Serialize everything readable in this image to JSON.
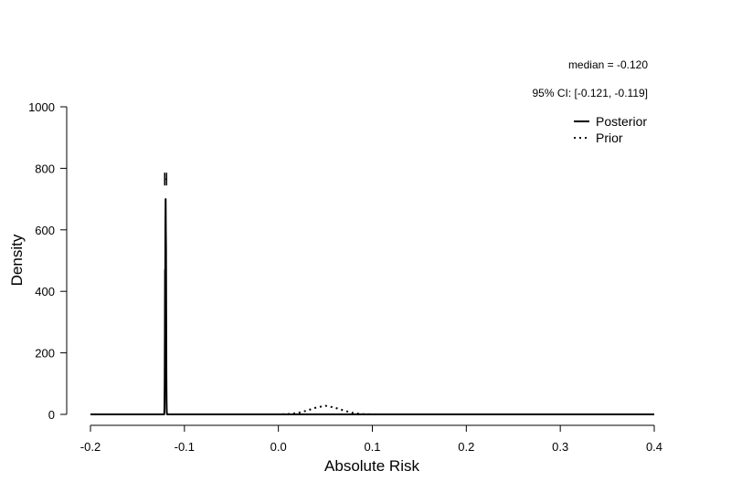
{
  "chart_data": {
    "type": "line",
    "xlabel": "Absolute Risk",
    "ylabel": "Density",
    "xlim": [
      -0.2,
      0.4
    ],
    "ylim": [
      0,
      1000
    ],
    "x_ticks": [
      -0.2,
      -0.1,
      0.0,
      0.1,
      0.2,
      0.3,
      0.4
    ],
    "x_tick_labels": [
      "-0.2",
      "-0.1",
      "0.0",
      "0.1",
      "0.2",
      "0.3",
      "0.4"
    ],
    "y_ticks": [
      0,
      200,
      400,
      600,
      800,
      1000
    ],
    "y_tick_labels": [
      "0",
      "200",
      "400",
      "600",
      "800",
      "1000"
    ],
    "annotations": {
      "median": "median = -0.120",
      "ci": "95% CI: [-0.121, -0.119]"
    },
    "ci_interval": [
      -0.121,
      -0.119
    ],
    "ci_bar_height": 765,
    "legend_position": "top-right",
    "series": [
      {
        "name": "Posterior",
        "style": "solid",
        "x": [
          -0.2,
          -0.1215,
          -0.1212,
          -0.121,
          -0.1208,
          -0.1206,
          -0.1204,
          -0.1202,
          -0.12,
          -0.1198,
          -0.1196,
          -0.1194,
          -0.1192,
          -0.119,
          -0.1188,
          -0.1186,
          -0.1184,
          -0.118,
          0.4
        ],
        "y": [
          0,
          0,
          20,
          100,
          250,
          470,
          420,
          620,
          700,
          600,
          540,
          330,
          120,
          40,
          10,
          2,
          0,
          0,
          0
        ]
      },
      {
        "name": "Prior",
        "style": "dotted",
        "x": [
          -0.2,
          0.0,
          0.01,
          0.02,
          0.03,
          0.04,
          0.05,
          0.06,
          0.07,
          0.08,
          0.09,
          0.1,
          0.4
        ],
        "y": [
          0,
          0,
          1,
          4,
          12,
          22,
          28,
          22,
          12,
          4,
          1,
          0,
          0
        ]
      }
    ]
  }
}
